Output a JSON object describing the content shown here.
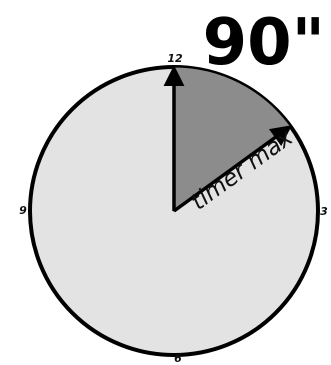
{
  "duration_label": "90\"",
  "arrow_label": "timer max",
  "timer_seconds": 90,
  "dial_seconds": 600,
  "hour_labels": {
    "top": "12",
    "right": "3",
    "bottom": "6",
    "left": "9"
  },
  "colors": {
    "face": "#e3e3e3",
    "sector": "#8c8c8c",
    "outline": "#000000"
  }
}
